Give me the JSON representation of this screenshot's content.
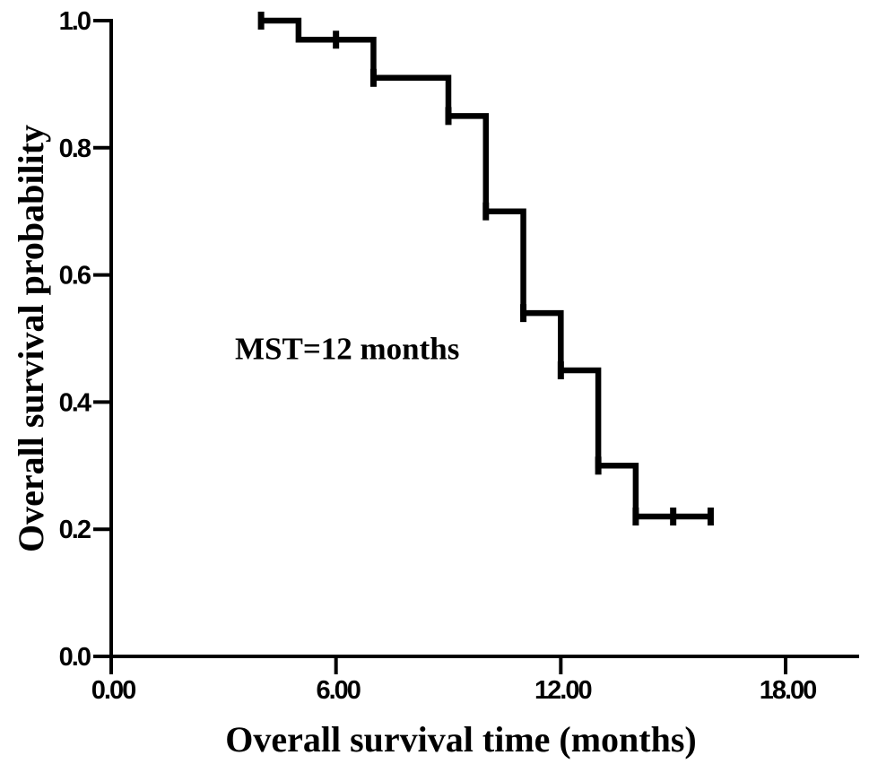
{
  "figure": {
    "background_color": "#ffffff",
    "ink_color": "#000000"
  },
  "chart_data": {
    "type": "line",
    "subtype": "kaplan-meier-step",
    "xlabel": "Overall survival time (months)",
    "ylabel": "Overall survival probability",
    "xlim": [
      0,
      18
    ],
    "ylim": [
      0.0,
      1.0
    ],
    "grid": false,
    "legend": false,
    "x_ticks": [
      {
        "value": 0,
        "label": "0.00"
      },
      {
        "value": 6,
        "label": "6.00"
      },
      {
        "value": 12,
        "label": "12.00"
      },
      {
        "value": 18,
        "label": "18.00"
      }
    ],
    "y_ticks": [
      {
        "value": 0.0,
        "label": "0.0"
      },
      {
        "value": 0.2,
        "label": "0.2"
      },
      {
        "value": 0.4,
        "label": "0.4"
      },
      {
        "value": 0.6,
        "label": "0.6"
      },
      {
        "value": 0.8,
        "label": "0.8"
      },
      {
        "value": 1.0,
        "label": "1.0"
      }
    ],
    "series": [
      {
        "name": "Overall survival",
        "color": "#000000",
        "start": [
          4,
          1.0
        ],
        "steps": [
          [
            5,
            0.97
          ],
          [
            7,
            0.91
          ],
          [
            9,
            0.85
          ],
          [
            10,
            0.7
          ],
          [
            11,
            0.54
          ],
          [
            12,
            0.45
          ],
          [
            13,
            0.3
          ],
          [
            14,
            0.22
          ]
        ],
        "end_time": 16,
        "censor_tick_marks": [
          [
            4,
            1.0
          ],
          [
            6,
            0.97
          ],
          [
            7,
            0.91
          ],
          [
            9,
            0.85
          ],
          [
            10,
            0.7
          ],
          [
            11,
            0.54
          ],
          [
            12,
            0.45
          ],
          [
            13,
            0.3
          ],
          [
            14,
            0.22
          ],
          [
            15,
            0.22
          ],
          [
            16,
            0.22
          ]
        ]
      }
    ],
    "annotation": {
      "text": "MST=12 months",
      "x": 6.3,
      "y": 0.48
    }
  }
}
